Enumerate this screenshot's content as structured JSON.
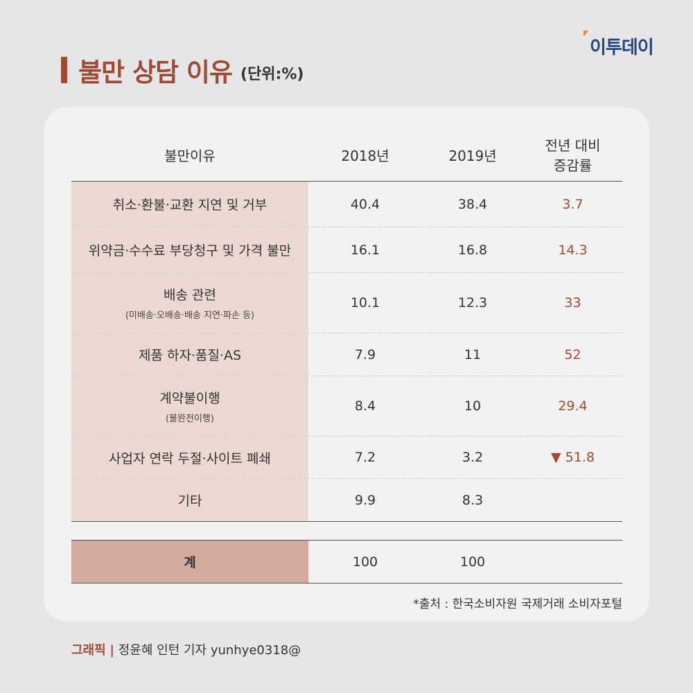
{
  "logo": "이투데이",
  "title": "불만 상담 이유",
  "unit": "(단위:%)",
  "headers": [
    "불만이유",
    "2018년",
    "2019년",
    "전년 대비",
    "증감률"
  ],
  "rows": [
    {
      "reason": "취소·환불·교환 지연 및 거부",
      "sub": "",
      "y2018": "40.4",
      "y2019": "38.4",
      "change": "3.7"
    },
    {
      "reason": "위약금·수수료 부당청구 및 가격 불만",
      "sub": "",
      "y2018": "16.1",
      "y2019": "16.8",
      "change": "14.3"
    },
    {
      "reason": "배송 관련",
      "sub": "(미배송·오배송·배송 지연·파손 등)",
      "y2018": "10.1",
      "y2019": "12.3",
      "change": "33"
    },
    {
      "reason": "제품 하자·품질·AS",
      "sub": "",
      "y2018": "7.9",
      "y2019": "11",
      "change": "52"
    },
    {
      "reason": "계약불이행",
      "sub": "(불완전이행)",
      "y2018": "8.4",
      "y2019": "10",
      "change": "29.4"
    },
    {
      "reason": "사업자 연락 두절·사이트 폐쇄",
      "sub": "",
      "y2018": "7.2",
      "y2019": "3.2",
      "change": "▼ 51.8"
    },
    {
      "reason": "기타",
      "sub": "",
      "y2018": "9.9",
      "y2019": "8.3",
      "change": ""
    }
  ],
  "total": {
    "label": "계",
    "y2018": "100",
    "y2019": "100"
  },
  "source": "*출처 : 한국소비자원 국제거래 소비자포털",
  "credit": {
    "label": "그래픽",
    "text": "정윤혜 인턴 기자 yunhye0318@"
  }
}
